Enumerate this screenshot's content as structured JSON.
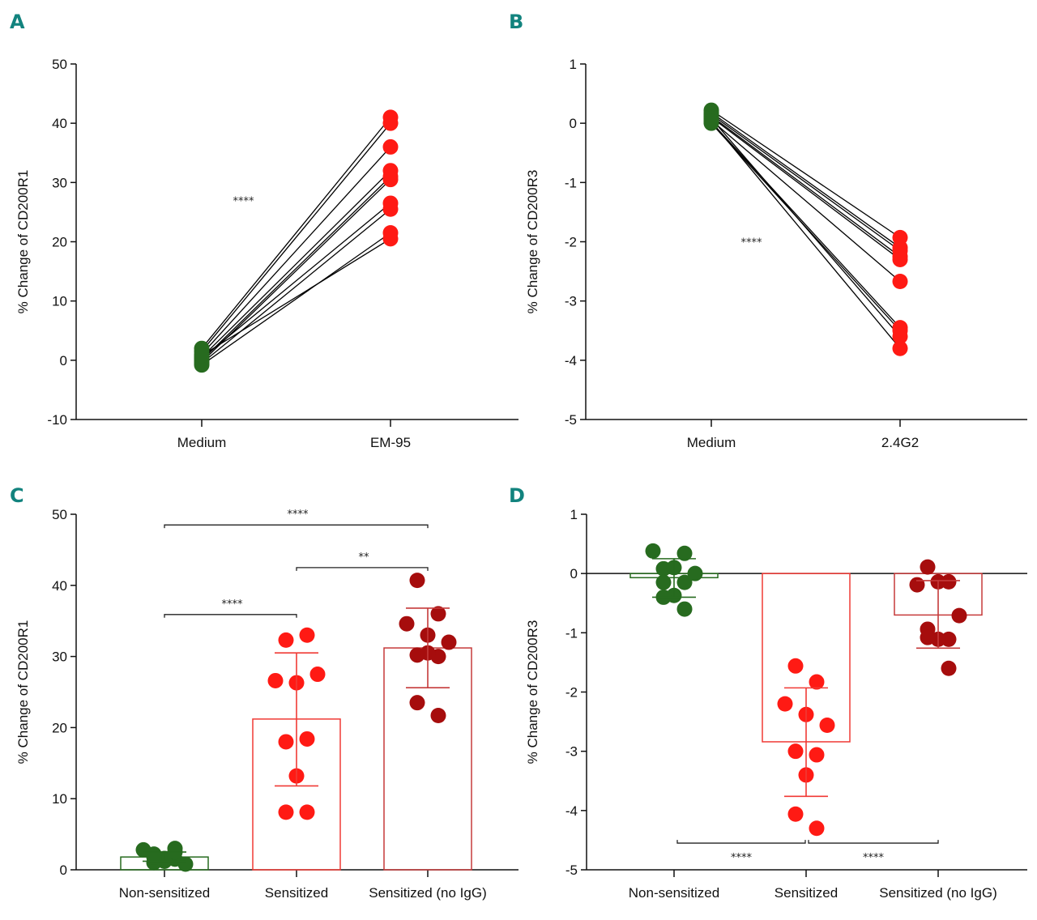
{
  "colors": {
    "panel_label": "#12837e",
    "green": "#276b1f",
    "red": "#ff1a14",
    "dark_red": "#a60d0d",
    "axis": "#111111"
  },
  "chart_data": [
    {
      "id": "A",
      "panel_label": "A",
      "type": "scatter",
      "subtype": "paired",
      "title": "",
      "xlabel": "",
      "ylabel": "% Change of CD200R1",
      "ylim": [
        -10,
        50
      ],
      "yticks": [
        -10,
        0,
        10,
        20,
        30,
        40,
        50
      ],
      "categories": [
        "Medium",
        "EM-95"
      ],
      "point_colors": [
        "green",
        "red"
      ],
      "pairs": [
        [
          2.0,
          41.0
        ],
        [
          1.5,
          40.0
        ],
        [
          1.0,
          36.0
        ],
        [
          0.5,
          32.0
        ],
        [
          0.0,
          31.0
        ],
        [
          -0.3,
          30.5
        ],
        [
          0.3,
          26.5
        ],
        [
          -0.5,
          25.5
        ],
        [
          -0.8,
          21.5
        ],
        [
          0.8,
          20.5
        ]
      ],
      "annotations": [
        {
          "text": "****",
          "x_between": [
            0,
            1
          ],
          "y": 27
        }
      ]
    },
    {
      "id": "B",
      "panel_label": "B",
      "type": "scatter",
      "subtype": "paired",
      "title": "",
      "xlabel": "",
      "ylabel": "% Change of CD200R3",
      "ylim": [
        -5,
        1
      ],
      "yticks": [
        -5,
        -4,
        -3,
        -2,
        -1,
        0,
        1
      ],
      "categories": [
        "Medium",
        "2.4G2"
      ],
      "point_colors": [
        "green",
        "red"
      ],
      "pairs": [
        [
          0.22,
          -1.93
        ],
        [
          0.18,
          -2.1
        ],
        [
          0.15,
          -2.15
        ],
        [
          0.12,
          -2.25
        ],
        [
          0.1,
          -2.3
        ],
        [
          0.05,
          -2.67
        ],
        [
          0.02,
          -3.45
        ],
        [
          0.0,
          -3.5
        ],
        [
          0.08,
          -3.6
        ],
        [
          0.03,
          -3.8
        ]
      ],
      "annotations": [
        {
          "text": "****",
          "x_between": [
            0,
            1
          ],
          "y": -2.0
        }
      ]
    },
    {
      "id": "C",
      "panel_label": "C",
      "type": "bar",
      "subtype": "bar-with-points",
      "title": "",
      "xlabel": "",
      "ylabel": "% Change of CD200R1",
      "ylim": [
        0,
        50
      ],
      "yticks": [
        0,
        10,
        20,
        30,
        40,
        50
      ],
      "categories": [
        "Non-sensitized",
        "Sensitized",
        "Sensitized (no IgG)"
      ],
      "series": [
        {
          "name": "Non-sensitized",
          "color": "green",
          "mean": 1.8,
          "error": [
            1.2,
            2.5
          ],
          "points": [
            2.2,
            1.5,
            2.8,
            1.2,
            0.8,
            1.0,
            3.0,
            1.6,
            1.8,
            2.5
          ]
        },
        {
          "name": "Sensitized",
          "color": "red",
          "mean": 21.2,
          "error": [
            11.8,
            30.5
          ],
          "points": [
            32.3,
            33.0,
            26.6,
            26.3,
            27.5,
            18.0,
            18.4,
            13.2,
            8.1,
            8.1
          ]
        },
        {
          "name": "Sensitized (no IgG)",
          "color": "dark_red",
          "mean": 31.2,
          "error": [
            25.6,
            36.8
          ],
          "points": [
            40.7,
            36.0,
            34.6,
            33.0,
            32.0,
            30.2,
            30.0,
            30.5,
            23.5,
            21.7
          ]
        }
      ],
      "brackets": [
        {
          "from": 0,
          "to": 2,
          "y": 48.5,
          "text": "****"
        },
        {
          "from": 1,
          "to": 2,
          "y": 42.5,
          "text": "**"
        },
        {
          "from": 0,
          "to": 1,
          "y": 35.9,
          "text": "****"
        }
      ]
    },
    {
      "id": "D",
      "panel_label": "D",
      "type": "bar",
      "subtype": "bar-with-points",
      "title": "",
      "xlabel": "",
      "ylabel": "% Change of CD200R3",
      "ylim": [
        -5,
        1
      ],
      "yticks": [
        -5,
        -4,
        -3,
        -2,
        -1,
        0,
        1
      ],
      "categories": [
        "Non-sensitized",
        "Sensitized",
        "Sensitized (no IgG)"
      ],
      "series": [
        {
          "name": "Non-sensitized",
          "color": "green",
          "mean": -0.07,
          "error": [
            -0.4,
            0.25
          ],
          "points": [
            0.08,
            0.34,
            0.38,
            0.1,
            0.0,
            -0.15,
            -0.15,
            -0.37,
            -0.4,
            -0.6
          ]
        },
        {
          "name": "Sensitized",
          "color": "red",
          "mean": -2.84,
          "error": [
            -3.76,
            -1.93
          ],
          "points": [
            -1.56,
            -1.83,
            -2.2,
            -2.38,
            -2.56,
            -3.0,
            -3.06,
            -3.4,
            -4.06,
            -4.3
          ]
        },
        {
          "name": "Sensitized (no IgG)",
          "color": "dark_red",
          "mean": -0.7,
          "error": [
            -1.26,
            -0.12
          ],
          "points": [
            0.11,
            -0.14,
            -0.19,
            -0.14,
            -0.71,
            -0.94,
            -1.11,
            -1.11,
            -1.08,
            -1.6
          ]
        }
      ],
      "brackets": [
        {
          "from": 0,
          "to": 1,
          "y": -4.55,
          "text": "****",
          "text_below": true
        },
        {
          "from": 1,
          "to": 2,
          "y": -4.55,
          "text": "****",
          "text_below": true
        }
      ],
      "zero_line": true
    }
  ]
}
